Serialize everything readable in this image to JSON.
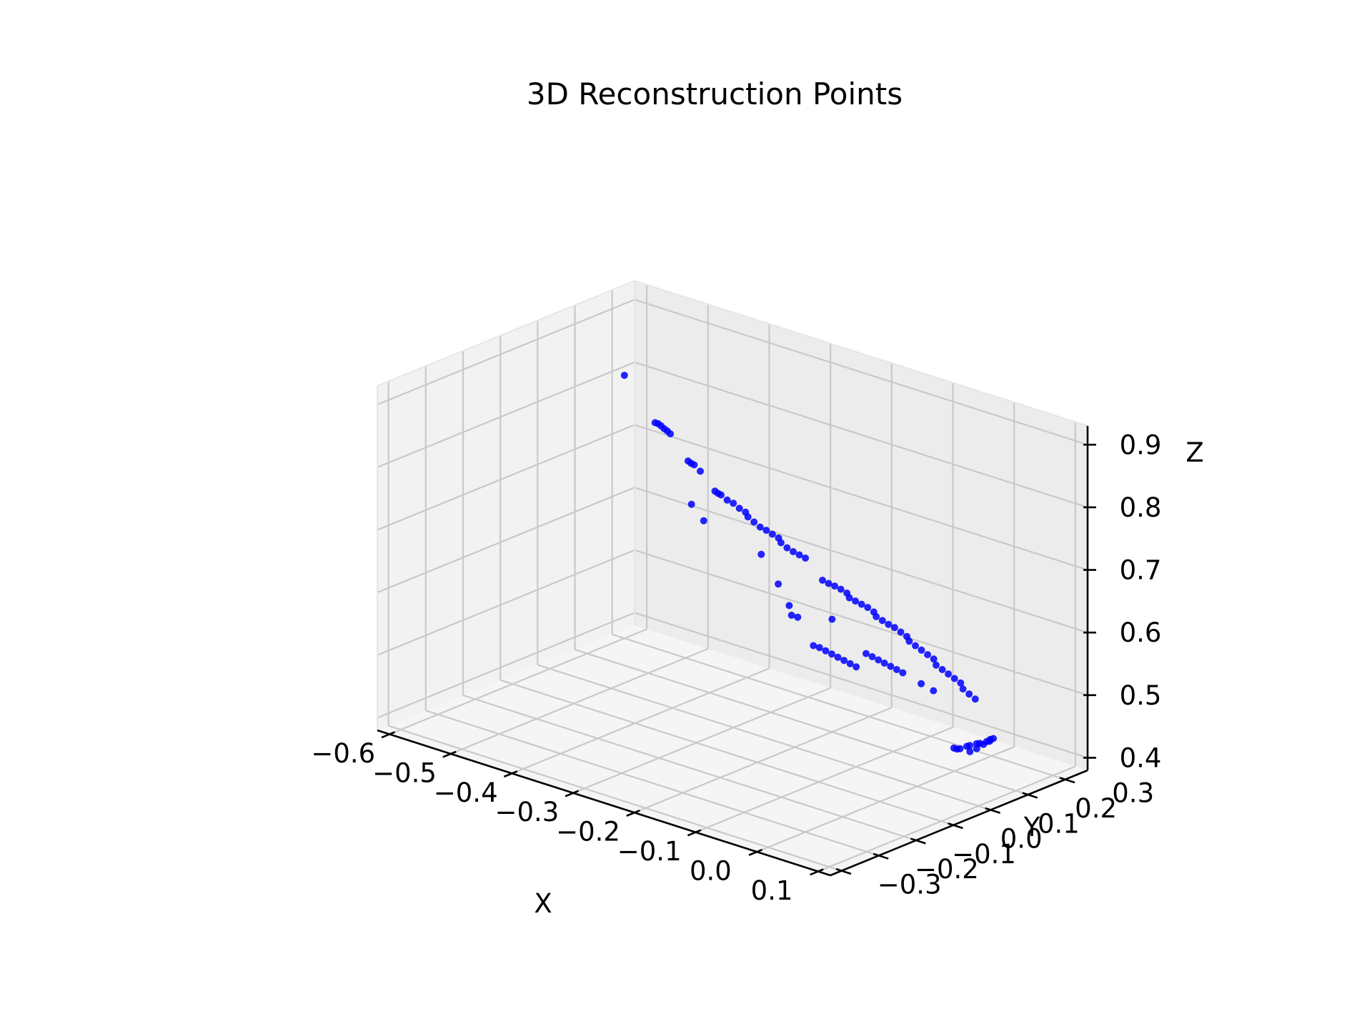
{
  "chart_data": {
    "type": "scatter",
    "projection": "3d",
    "title": "3D Reconstruction Points",
    "xlabel": "X",
    "ylabel": "Y",
    "zlabel": "Z",
    "xlim": [
      -0.62,
      0.12
    ],
    "ylim": [
      -0.33,
      0.36
    ],
    "zlim": [
      0.38,
      0.93
    ],
    "x_ticks": [
      "−0.6",
      "−0.5",
      "−0.4",
      "−0.3",
      "−0.2",
      "−0.1",
      "0.0",
      "0.1"
    ],
    "y_ticks": [
      "−0.3",
      "−0.2",
      "−0.1",
      "0.0",
      "0.1",
      "0.2",
      "0.3"
    ],
    "z_ticks": [
      "0.4",
      "0.5",
      "0.6",
      "0.7",
      "0.8",
      "0.9"
    ],
    "grid": true,
    "marker_color": "#0000ff",
    "pane_colors": {
      "left": "#f2f2f2",
      "back": "#ececec",
      "floor": "#f5f5f5",
      "grid": "#c9c9c9"
    },
    "series": [
      {
        "points": [
          [
            -0.6,
            0.3,
            0.8
          ],
          [
            -0.55,
            0.3,
            0.74
          ],
          [
            -0.545,
            0.3,
            0.74
          ],
          [
            -0.54,
            0.3,
            0.738
          ],
          [
            -0.535,
            0.3,
            0.735
          ],
          [
            -0.53,
            0.3,
            0.733
          ],
          [
            -0.525,
            0.3,
            0.73
          ],
          [
            -0.49,
            0.29,
            0.7
          ],
          [
            -0.485,
            0.29,
            0.698
          ],
          [
            -0.48,
            0.29,
            0.697
          ],
          [
            -0.47,
            0.29,
            0.69
          ],
          [
            -0.44,
            0.28,
            0.67
          ],
          [
            -0.435,
            0.28,
            0.668
          ],
          [
            -0.43,
            0.28,
            0.667
          ],
          [
            -0.42,
            0.28,
            0.662
          ],
          [
            -0.41,
            0.28,
            0.66
          ],
          [
            -0.4,
            0.28,
            0.655
          ],
          [
            -0.39,
            0.28,
            0.652
          ],
          [
            -0.38,
            0.27,
            0.65
          ],
          [
            -0.37,
            0.27,
            0.645
          ],
          [
            -0.36,
            0.27,
            0.64
          ],
          [
            -0.35,
            0.27,
            0.638
          ],
          [
            -0.34,
            0.27,
            0.635
          ],
          [
            -0.33,
            0.27,
            0.632
          ],
          [
            -0.32,
            0.26,
            0.63
          ],
          [
            -0.31,
            0.26,
            0.625
          ],
          [
            -0.3,
            0.26,
            0.622
          ],
          [
            -0.29,
            0.26,
            0.62
          ],
          [
            -0.28,
            0.26,
            0.618
          ],
          [
            -0.46,
            0.25,
            0.65
          ],
          [
            -0.44,
            0.25,
            0.63
          ],
          [
            -0.34,
            0.24,
            0.61
          ],
          [
            -0.24,
            0.24,
            0.6
          ],
          [
            -0.23,
            0.24,
            0.598
          ],
          [
            -0.22,
            0.24,
            0.597
          ],
          [
            -0.21,
            0.24,
            0.595
          ],
          [
            -0.2,
            0.24,
            0.592
          ],
          [
            -0.19,
            0.23,
            0.59
          ],
          [
            -0.18,
            0.23,
            0.588
          ],
          [
            -0.17,
            0.23,
            0.586
          ],
          [
            -0.16,
            0.23,
            0.584
          ],
          [
            -0.15,
            0.23,
            0.58
          ],
          [
            -0.14,
            0.22,
            0.578
          ],
          [
            -0.13,
            0.22,
            0.575
          ],
          [
            -0.12,
            0.22,
            0.572
          ],
          [
            -0.11,
            0.22,
            0.57
          ],
          [
            -0.1,
            0.22,
            0.566
          ],
          [
            -0.09,
            0.22,
            0.562
          ],
          [
            -0.08,
            0.21,
            0.56
          ],
          [
            -0.07,
            0.21,
            0.556
          ],
          [
            -0.06,
            0.21,
            0.552
          ],
          [
            -0.05,
            0.21,
            0.548
          ],
          [
            -0.04,
            0.21,
            0.544
          ],
          [
            -0.03,
            0.2,
            0.54
          ],
          [
            -0.02,
            0.2,
            0.536
          ],
          [
            -0.01,
            0.2,
            0.532
          ],
          [
            0.0,
            0.2,
            0.528
          ],
          [
            0.01,
            0.2,
            0.524
          ],
          [
            0.02,
            0.19,
            0.52
          ],
          [
            0.03,
            0.19,
            0.515
          ],
          [
            0.04,
            0.19,
            0.51
          ],
          [
            -0.3,
            0.22,
            0.58
          ],
          [
            -0.27,
            0.2,
            0.56
          ],
          [
            -0.26,
            0.19,
            0.55
          ],
          [
            -0.25,
            0.19,
            0.55
          ],
          [
            -0.2,
            0.2,
            0.56
          ],
          [
            -0.2,
            0.15,
            0.53
          ],
          [
            -0.19,
            0.15,
            0.53
          ],
          [
            -0.18,
            0.15,
            0.528
          ],
          [
            -0.17,
            0.15,
            0.526
          ],
          [
            -0.16,
            0.15,
            0.524
          ],
          [
            -0.15,
            0.15,
            0.522
          ],
          [
            -0.14,
            0.15,
            0.52
          ],
          [
            -0.13,
            0.15,
            0.518
          ],
          [
            -0.12,
            0.16,
            0.54
          ],
          [
            -0.11,
            0.16,
            0.538
          ],
          [
            -0.1,
            0.16,
            0.536
          ],
          [
            -0.09,
            0.16,
            0.534
          ],
          [
            -0.08,
            0.16,
            0.532
          ],
          [
            -0.07,
            0.16,
            0.53
          ],
          [
            -0.06,
            0.16,
            0.528
          ],
          [
            -0.03,
            0.16,
            0.52
          ],
          [
            -0.01,
            0.16,
            0.515
          ],
          [
            0.06,
            0.1,
            0.46
          ],
          [
            0.065,
            0.1,
            0.46
          ],
          [
            0.07,
            0.1,
            0.462
          ],
          [
            0.075,
            0.11,
            0.465
          ],
          [
            0.08,
            0.11,
            0.468
          ],
          [
            0.085,
            0.12,
            0.47
          ],
          [
            0.09,
            0.12,
            0.472
          ],
          [
            0.095,
            0.13,
            0.474
          ],
          [
            0.1,
            0.13,
            0.476
          ],
          [
            0.1,
            0.14,
            0.478
          ],
          [
            0.095,
            0.14,
            0.475
          ],
          [
            0.09,
            0.13,
            0.468
          ],
          [
            0.085,
            0.12,
            0.462
          ],
          [
            0.08,
            0.11,
            0.458
          ]
        ]
      }
    ]
  }
}
